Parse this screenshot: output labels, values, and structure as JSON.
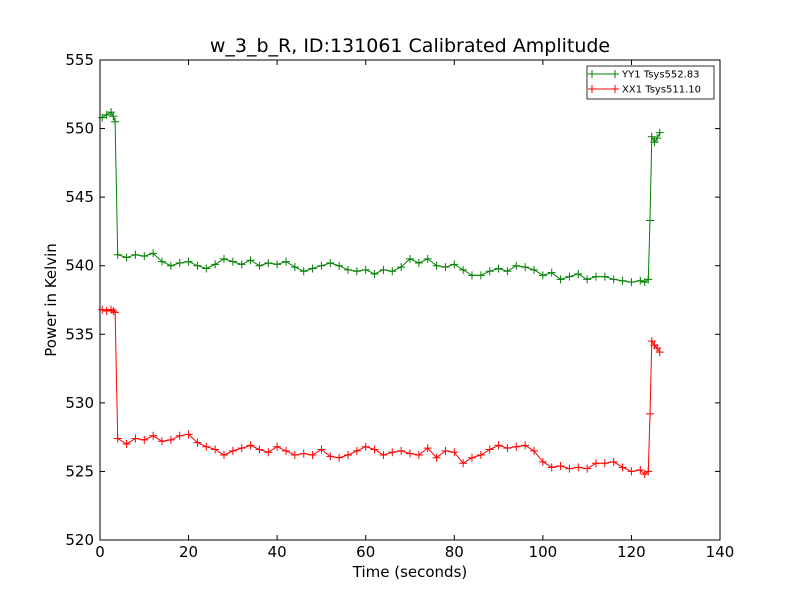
{
  "chart_data": {
    "type": "line",
    "title": "w_3_b_R, ID:131061 Calibrated Amplitude",
    "xlabel": "Time (seconds)",
    "ylabel": "Power in Kelvin",
    "xlim": [
      0,
      140
    ],
    "ylim": [
      520,
      555
    ],
    "xticks": [
      0,
      20,
      40,
      60,
      80,
      100,
      120,
      140
    ],
    "yticks": [
      520,
      525,
      530,
      535,
      540,
      545,
      550,
      555
    ],
    "xtick_labels": [
      "0",
      "20",
      "40",
      "60",
      "80",
      100,
      "120",
      "140"
    ],
    "ytick_labels": [
      "520",
      "525",
      "530",
      "535",
      "540",
      "545",
      "550",
      "555"
    ],
    "grid": false,
    "legend_position": "top-right",
    "marker": "plus",
    "series": [
      {
        "name": "YY1 Tsys552.83",
        "color": "#008000",
        "x": [
          0.5,
          1.5,
          2.5,
          3.0,
          3.4,
          4,
          6,
          8,
          10,
          12,
          14,
          16,
          18,
          20,
          22,
          24,
          26,
          28,
          30,
          32,
          34,
          36,
          38,
          40,
          42,
          44,
          46,
          48,
          50,
          52,
          54,
          56,
          58,
          60,
          62,
          64,
          66,
          68,
          70,
          72,
          74,
          76,
          78,
          80,
          82,
          84,
          86,
          88,
          90,
          92,
          94,
          96,
          98,
          100,
          102,
          104,
          106,
          108,
          110,
          112,
          114,
          116,
          118,
          120,
          122,
          123,
          123.8,
          124.2,
          124.6,
          125.2,
          125.8,
          126.4
        ],
        "values": [
          550.8,
          551.0,
          551.2,
          550.9,
          550.5,
          540.8,
          540.6,
          540.8,
          540.7,
          540.9,
          540.3,
          540.0,
          540.2,
          540.3,
          540.0,
          539.8,
          540.1,
          540.5,
          540.3,
          540.1,
          540.4,
          540.0,
          540.2,
          540.1,
          540.3,
          539.9,
          539.6,
          539.8,
          540.0,
          540.2,
          540.0,
          539.7,
          539.6,
          539.7,
          539.4,
          539.7,
          539.6,
          539.9,
          540.5,
          540.2,
          540.5,
          540.0,
          539.9,
          540.1,
          539.7,
          539.3,
          539.3,
          539.6,
          539.8,
          539.6,
          540.0,
          539.9,
          539.7,
          539.3,
          539.5,
          539.0,
          539.2,
          539.4,
          539.0,
          539.2,
          539.2,
          539.0,
          538.9,
          538.8,
          538.9,
          538.8,
          539.0,
          543.3,
          549.4,
          549.0,
          549.3,
          549.7
        ]
      },
      {
        "name": "XX1 Tsys511.10",
        "color": "#ff0000",
        "x": [
          0.5,
          1.5,
          2.5,
          3.0,
          3.4,
          4,
          6,
          8,
          10,
          12,
          14,
          16,
          18,
          20,
          22,
          24,
          26,
          28,
          30,
          32,
          34,
          36,
          38,
          40,
          42,
          44,
          46,
          48,
          50,
          52,
          54,
          56,
          58,
          60,
          62,
          64,
          66,
          68,
          70,
          72,
          74,
          76,
          78,
          80,
          82,
          84,
          86,
          88,
          90,
          92,
          94,
          96,
          98,
          100,
          102,
          104,
          106,
          108,
          110,
          112,
          114,
          116,
          118,
          120,
          122,
          123,
          123.8,
          124.2,
          124.6,
          125.2,
          125.8,
          126.4
        ],
        "values": [
          536.8,
          536.7,
          536.8,
          536.7,
          536.6,
          527.4,
          527.0,
          527.4,
          527.3,
          527.6,
          527.2,
          527.3,
          527.6,
          527.7,
          527.1,
          526.8,
          526.6,
          526.2,
          526.5,
          526.7,
          526.9,
          526.6,
          526.4,
          526.8,
          526.5,
          526.2,
          526.3,
          526.2,
          526.6,
          526.1,
          526.0,
          526.2,
          526.5,
          526.8,
          526.6,
          526.2,
          526.4,
          526.5,
          526.3,
          526.2,
          526.7,
          526.0,
          526.5,
          526.4,
          525.6,
          526.0,
          526.2,
          526.6,
          526.9,
          526.7,
          526.8,
          526.9,
          526.5,
          525.7,
          525.3,
          525.4,
          525.2,
          525.3,
          525.2,
          525.6,
          525.6,
          525.7,
          525.3,
          525.0,
          525.1,
          524.8,
          525.0,
          529.2,
          534.5,
          534.2,
          534.0,
          533.7
        ]
      }
    ]
  }
}
